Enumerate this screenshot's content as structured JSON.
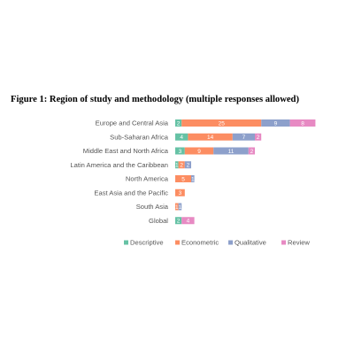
{
  "chart_data": {
    "type": "bar",
    "orientation": "horizontal",
    "stacked": true,
    "title": "Figure 1: Region of study and methodology (multiple responses allowed)",
    "categories": [
      "Europe and Central Asia",
      "Sub-Saharan Africa",
      "Middle East and North Africa",
      "Latin America and the Caribbean",
      "North America",
      "East Asia and the Pacific",
      "South Asia",
      "Global"
    ],
    "series": [
      {
        "name": "Descriptive",
        "color": "#66c2a5",
        "values": [
          2,
          4,
          3,
          1,
          0,
          0,
          0,
          2
        ]
      },
      {
        "name": "Econometric",
        "color": "#fc8d62",
        "values": [
          25,
          14,
          9,
          2,
          5,
          3,
          1,
          0
        ]
      },
      {
        "name": "Qualitative",
        "color": "#8da0cb",
        "values": [
          9,
          7,
          11,
          2,
          1,
          0,
          1,
          0
        ]
      },
      {
        "name": "Review",
        "color": "#e78ac3",
        "values": [
          8,
          2,
          2,
          0,
          0,
          0,
          0,
          4
        ]
      }
    ],
    "legend_position": "bottom",
    "grid": false
  }
}
